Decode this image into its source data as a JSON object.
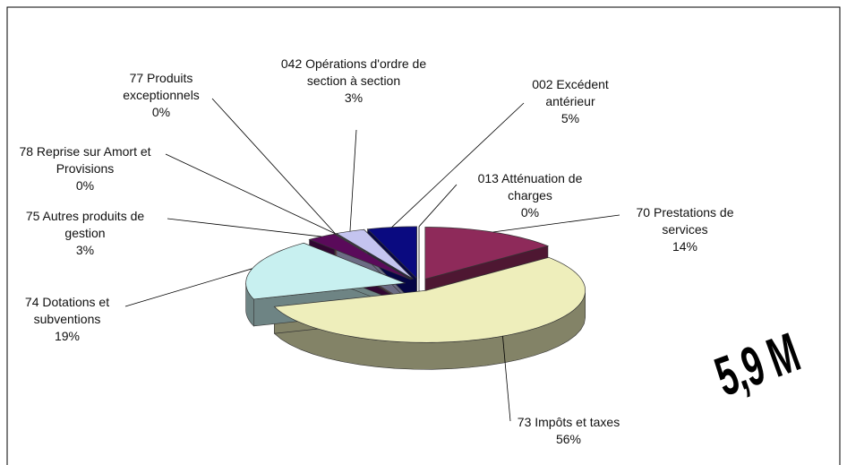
{
  "chart_data": {
    "type": "pie",
    "categories": [
      "013 Atténuation de charges",
      "70 Prestations de services",
      "73 Impôts et taxes",
      "74 Dotations et subventions",
      "75 Autres produits de gestion",
      "78 Reprise sur Amort et Provisions",
      "77 Produits exceptionnels",
      "042 Opérations d'ordre de section à section",
      "002 Excédent antérieur"
    ],
    "values": [
      0,
      14,
      56,
      19,
      3,
      0,
      0,
      3,
      5
    ],
    "value_labels": [
      "0%",
      "14%",
      "56%",
      "19%",
      "3%",
      "0%",
      "0%",
      "3%",
      "5%"
    ],
    "colors": [
      "#eef4ff",
      "#8e2a5a",
      "#eeeebb",
      "#c8f0f0",
      "#5a0a5a",
      "#d04040",
      "#ff9090",
      "#c4c4f0",
      "#0a0a80"
    ],
    "annotation": "5,9 M"
  }
}
